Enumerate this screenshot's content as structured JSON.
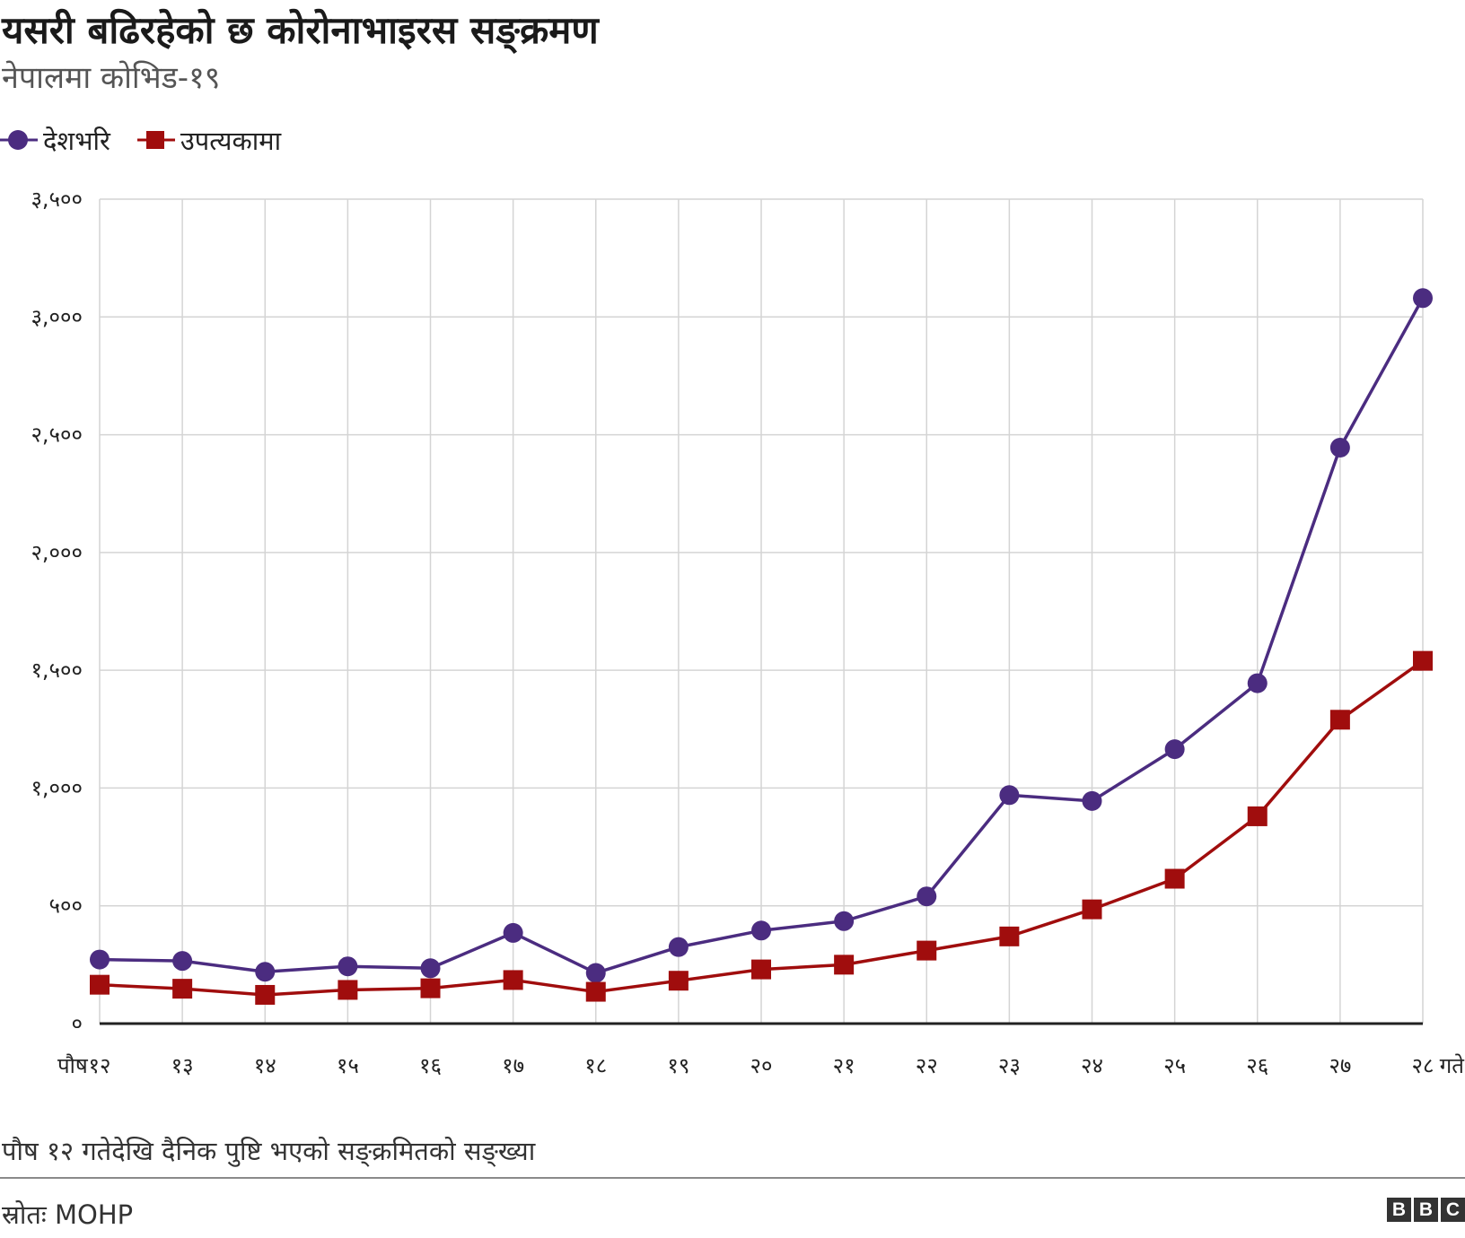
{
  "header": {
    "title": "यसरी बढिरहेको छ कोरोनाभाइरस सङ्क्रमण",
    "subtitle": "नेपालमा कोभिड-१९"
  },
  "legend": {
    "items": [
      {
        "label": "देशभरि",
        "color": "#4b2c80",
        "marker": "circle"
      },
      {
        "label": "उपत्यकामा",
        "color": "#a00d0d",
        "marker": "square"
      }
    ]
  },
  "footer": {
    "note": "पौष १२ गतेदेखि दैनिक पुष्टि भएको सङ्क्रमितको सङ्ख्या",
    "source": "स्रोतः MOHP",
    "logo_letters": [
      "B",
      "B",
      "C"
    ]
  },
  "chart_data": {
    "type": "line",
    "categories": [
      "१२",
      "१३",
      "१४",
      "१५",
      "१६",
      "१७",
      "१८",
      "१९",
      "२०",
      "२१",
      "२२",
      "२३",
      "२४",
      "२५",
      "२६",
      "२७",
      "२८"
    ],
    "x_prefix": "पौष",
    "x_suffix": "गते",
    "series": [
      {
        "name": "देशभरि",
        "color": "#4b2c80",
        "marker": "circle",
        "values": [
          272,
          266,
          220,
          243,
          235,
          385,
          215,
          325,
          395,
          435,
          540,
          970,
          945,
          1165,
          1445,
          2445,
          3080
        ]
      },
      {
        "name": "उपत्यकामा",
        "color": "#a00d0d",
        "marker": "square",
        "values": [
          165,
          148,
          122,
          143,
          150,
          185,
          135,
          182,
          230,
          250,
          310,
          370,
          485,
          615,
          880,
          1290,
          1540
        ]
      }
    ],
    "ylim": [
      0,
      3500
    ],
    "yticks": [
      {
        "value": 0,
        "label": "०"
      },
      {
        "value": 500,
        "label": "५००"
      },
      {
        "value": 1000,
        "label": "१,०००"
      },
      {
        "value": 1500,
        "label": "१,५००"
      },
      {
        "value": 2000,
        "label": "२,०००"
      },
      {
        "value": 2500,
        "label": "२,५००"
      },
      {
        "value": 3000,
        "label": "३,०००"
      },
      {
        "value": 3500,
        "label": "३,५००"
      }
    ],
    "grid": true,
    "legend_position": "top-left"
  }
}
